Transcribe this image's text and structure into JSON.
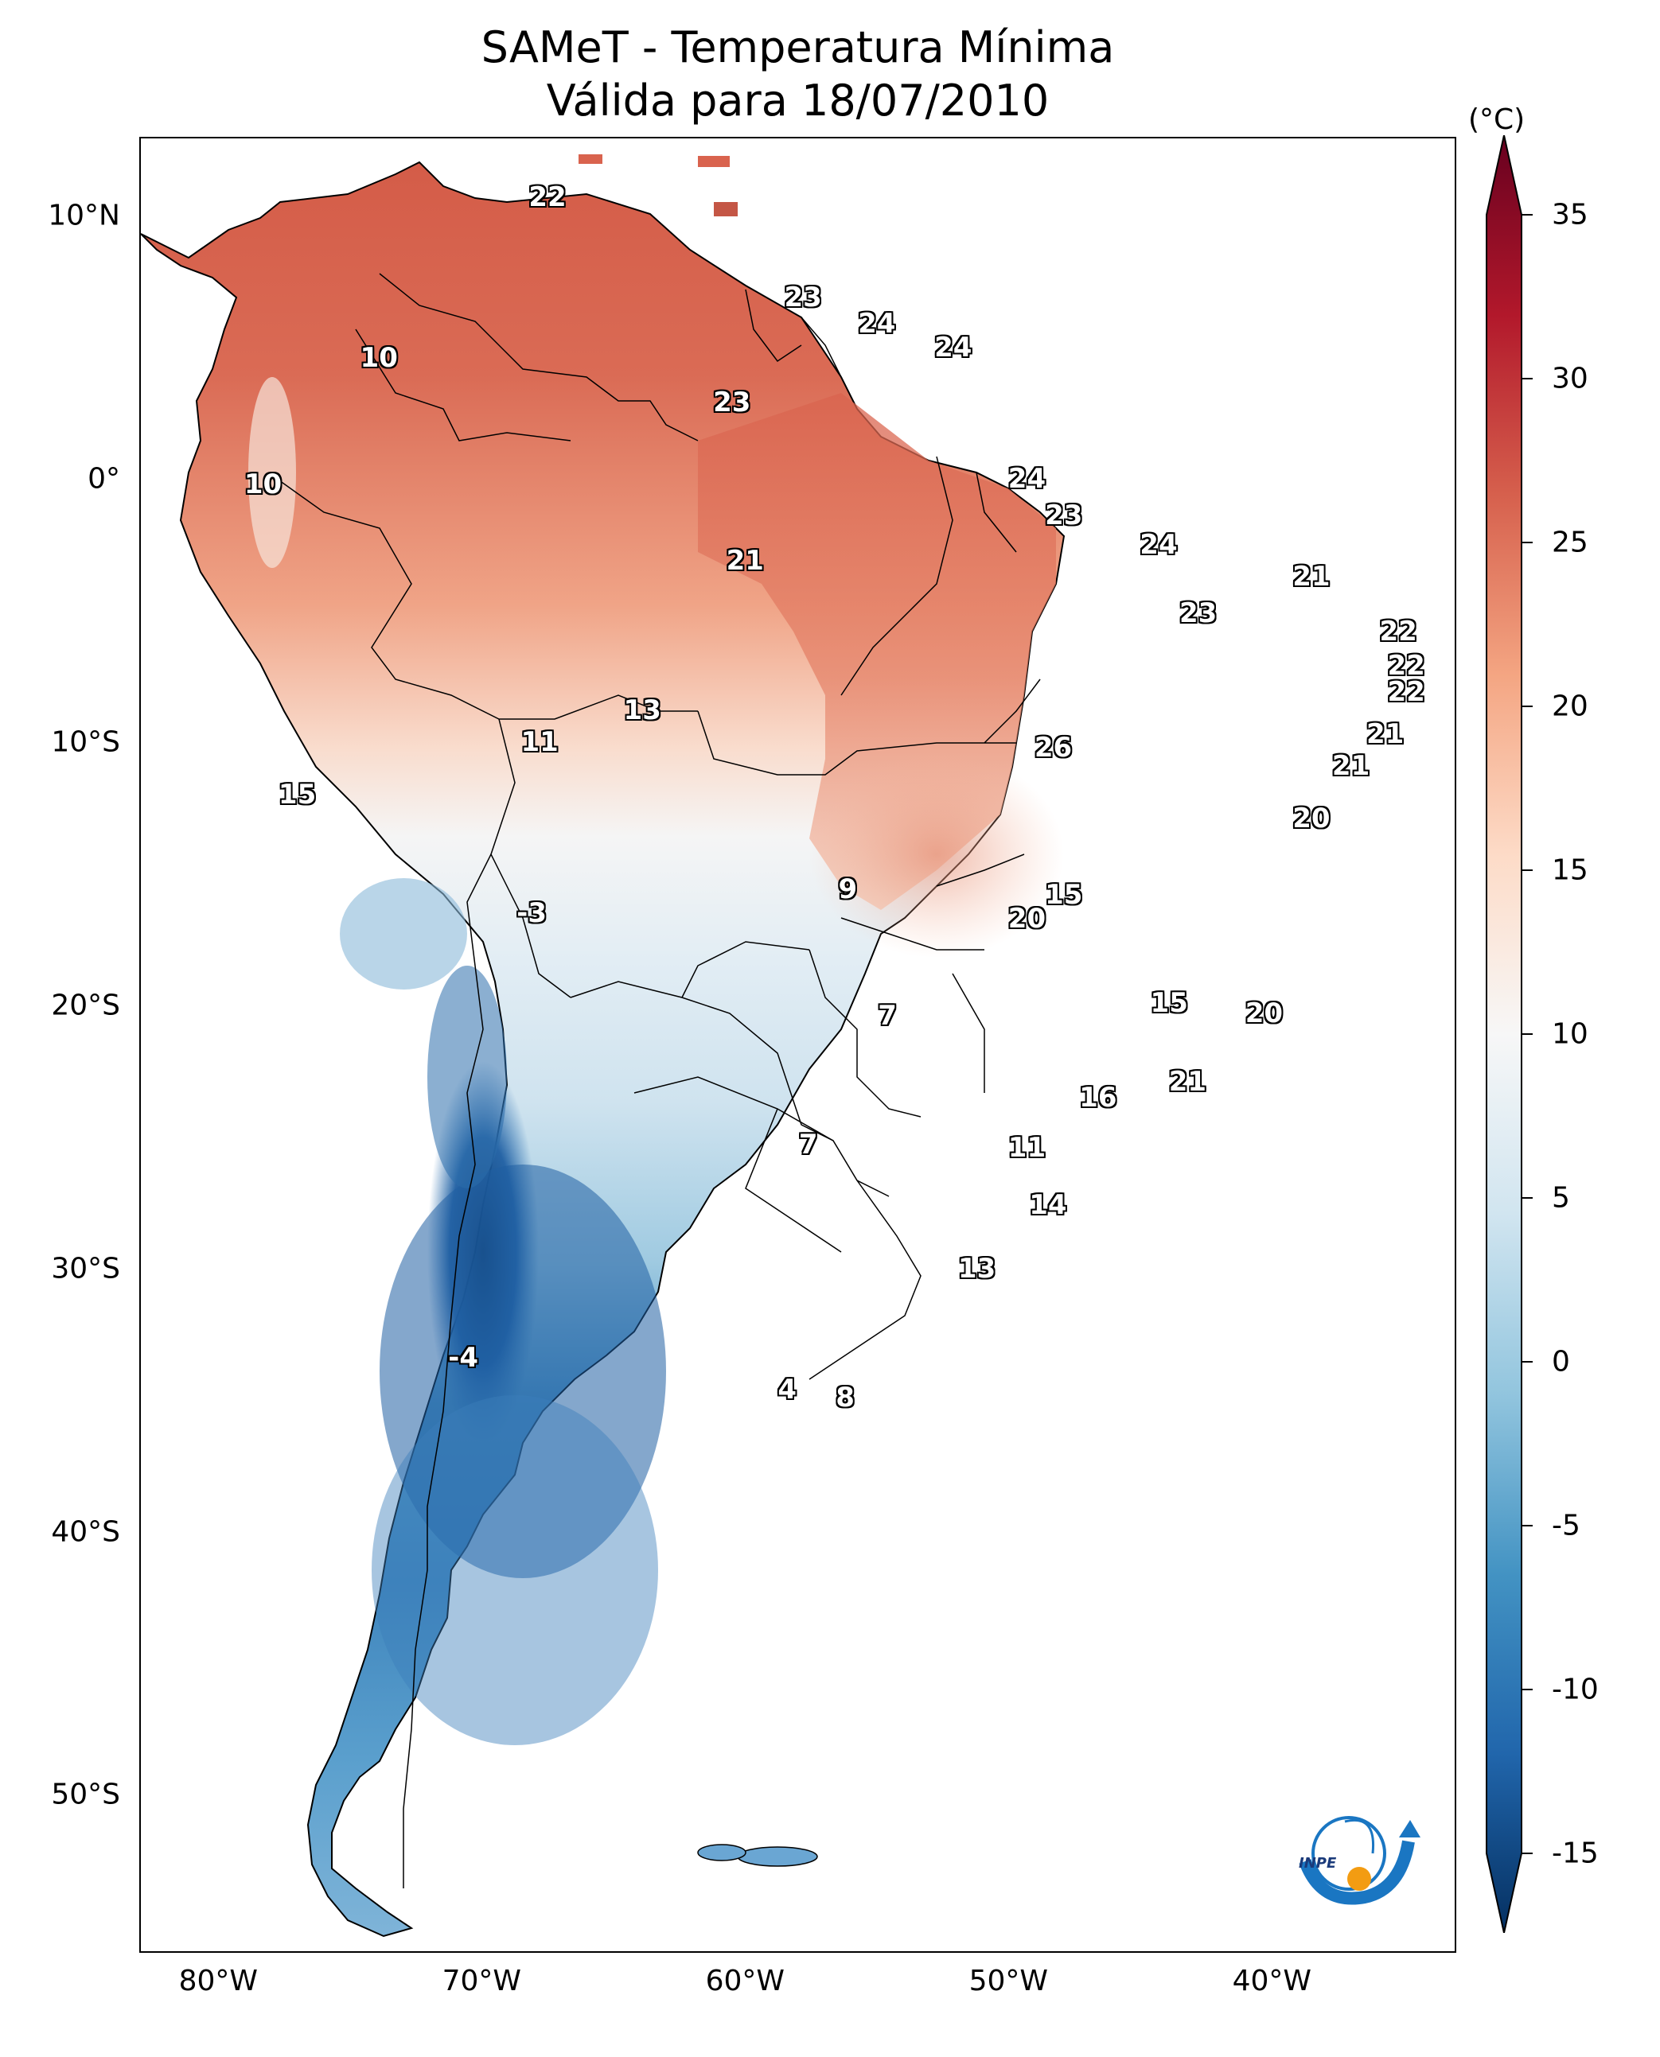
{
  "title": {
    "line1": "SAMeT - Temperatura Mínima",
    "line2": "Válida para 18/07/2010"
  },
  "axes": {
    "lat_ticks": [
      "10°N",
      "0°",
      "10°S",
      "20°S",
      "30°S",
      "40°S",
      "50°S"
    ],
    "lat_values": [
      10,
      0,
      -10,
      -20,
      -30,
      -40,
      -50
    ],
    "lon_ticks": [
      "80°W",
      "70°W",
      "60°W",
      "50°W",
      "40°W"
    ],
    "lon_values": [
      -80,
      -70,
      -60,
      -50,
      -40
    ],
    "lat_range": [
      -56,
      13
    ],
    "lon_range": [
      -83,
      -33
    ]
  },
  "colorbar": {
    "unit": "(°C)",
    "ticks": [
      "35",
      "30",
      "25",
      "20",
      "15",
      "10",
      "5",
      "0",
      "-5",
      "-10",
      "-15"
    ],
    "tick_values": [
      35,
      30,
      25,
      20,
      15,
      10,
      5,
      0,
      -5,
      -10,
      -15
    ],
    "range": [
      -15,
      35
    ],
    "colormap": "RdBu_r",
    "colors": [
      "#053061",
      "#2166ac",
      "#4393c3",
      "#92c5de",
      "#d1e5f0",
      "#f7f7f7",
      "#fddbc7",
      "#f4a582",
      "#d6604d",
      "#b2182b",
      "#67001f"
    ],
    "extend": "both"
  },
  "chart_data": {
    "type": "heatmap",
    "variable": "Temperatura Mínima",
    "unit": "°C",
    "point_values": [
      {
        "lon": -67.5,
        "lat": 10.7,
        "value": "22"
      },
      {
        "lon": -57.8,
        "lat": 6.9,
        "value": "23"
      },
      {
        "lon": -55.0,
        "lat": 5.9,
        "value": "24"
      },
      {
        "lon": -52.1,
        "lat": 5.0,
        "value": "24"
      },
      {
        "lon": -60.5,
        "lat": 2.9,
        "value": "23"
      },
      {
        "lon": -73.9,
        "lat": 4.6,
        "value": "10"
      },
      {
        "lon": -78.3,
        "lat": -0.2,
        "value": "10"
      },
      {
        "lon": -49.3,
        "lat": -0.0,
        "value": "24"
      },
      {
        "lon": -60.0,
        "lat": -3.1,
        "value": "21"
      },
      {
        "lon": -47.9,
        "lat": -1.4,
        "value": "23"
      },
      {
        "lon": -44.3,
        "lat": -2.5,
        "value": "24"
      },
      {
        "lon": -38.5,
        "lat": -3.7,
        "value": "21"
      },
      {
        "lon": -42.8,
        "lat": -5.1,
        "value": "23"
      },
      {
        "lon": -35.2,
        "lat": -5.8,
        "value": "22"
      },
      {
        "lon": -34.9,
        "lat": -7.1,
        "value": "22"
      },
      {
        "lon": -34.9,
        "lat": -8.1,
        "value": "22"
      },
      {
        "lon": -63.9,
        "lat": -8.8,
        "value": "13"
      },
      {
        "lon": -67.8,
        "lat": -10.0,
        "value": "11"
      },
      {
        "lon": -48.3,
        "lat": -10.2,
        "value": "26"
      },
      {
        "lon": -35.7,
        "lat": -9.7,
        "value": "21"
      },
      {
        "lon": -37.0,
        "lat": -10.9,
        "value": "21"
      },
      {
        "lon": -38.5,
        "lat": -12.9,
        "value": "20"
      },
      {
        "lon": -77.0,
        "lat": -12.0,
        "value": "15"
      },
      {
        "lon": -56.1,
        "lat": -15.6,
        "value": "9"
      },
      {
        "lon": -68.1,
        "lat": -16.5,
        "value": "-3"
      },
      {
        "lon": -47.9,
        "lat": -15.8,
        "value": "15"
      },
      {
        "lon": -49.3,
        "lat": -16.7,
        "value": "20"
      },
      {
        "lon": -43.9,
        "lat": -19.9,
        "value": "15"
      },
      {
        "lon": -40.3,
        "lat": -20.3,
        "value": "20"
      },
      {
        "lon": -54.6,
        "lat": -20.4,
        "value": "7"
      },
      {
        "lon": -43.2,
        "lat": -22.9,
        "value": "21"
      },
      {
        "lon": -46.6,
        "lat": -23.5,
        "value": "16"
      },
      {
        "lon": -57.6,
        "lat": -25.3,
        "value": "7"
      },
      {
        "lon": -49.3,
        "lat": -25.4,
        "value": "11"
      },
      {
        "lon": -48.5,
        "lat": -27.6,
        "value": "14"
      },
      {
        "lon": -51.2,
        "lat": -30.0,
        "value": "13"
      },
      {
        "lon": -70.7,
        "lat": -33.4,
        "value": "-4"
      },
      {
        "lon": -58.4,
        "lat": -34.6,
        "value": "4"
      },
      {
        "lon": -56.2,
        "lat": -34.9,
        "value": "8"
      }
    ]
  }
}
